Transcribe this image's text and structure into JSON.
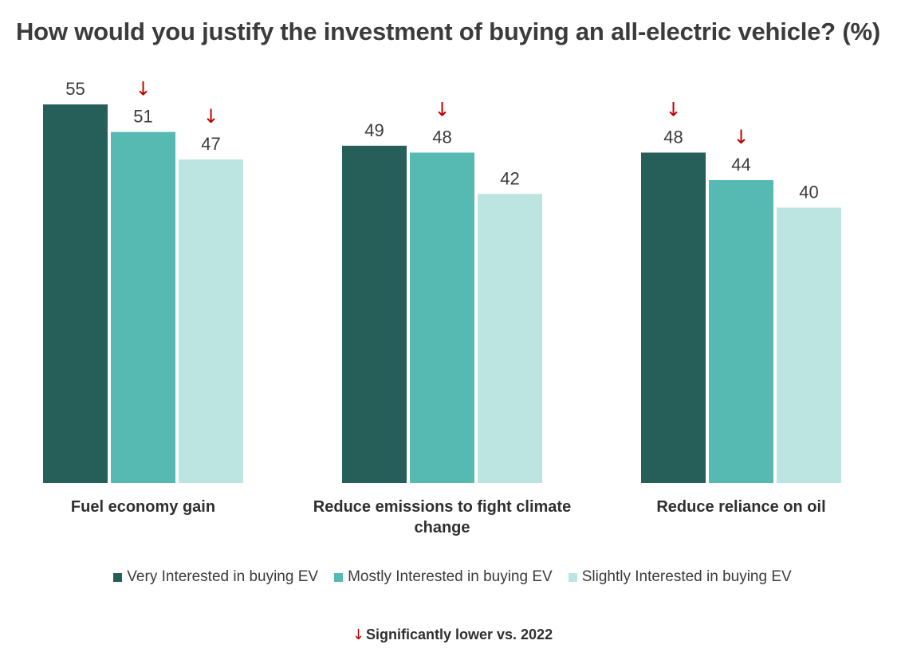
{
  "chart_data": {
    "type": "bar",
    "title": "How would you justify the investment of buying an all-electric vehicle? (%)",
    "categories": [
      "Fuel economy gain",
      "Reduce emissions to fight climate change",
      "Reduce reliance on oil"
    ],
    "category_label_lines": [
      [
        "Fuel economy gain"
      ],
      [
        "Reduce emissions to fight climate",
        "change"
      ],
      [
        "Reduce reliance on oil"
      ]
    ],
    "series": [
      {
        "name": "Very Interested in buying EV",
        "color": "#265e59",
        "values": [
          55,
          49,
          48
        ],
        "significantly_lower": [
          false,
          false,
          true
        ]
      },
      {
        "name": "Mostly Interested in buying EV",
        "color": "#56b9b2",
        "values": [
          51,
          48,
          44
        ],
        "significantly_lower": [
          true,
          true,
          true
        ]
      },
      {
        "name": "Slightly Interested in buying EV",
        "color": "#bce5e1",
        "values": [
          47,
          42,
          40
        ],
        "significantly_lower": [
          true,
          false,
          false
        ]
      }
    ],
    "ylim": [
      0,
      55
    ],
    "grid": false,
    "legend_position": "bottom",
    "xlabel": "",
    "ylabel": ""
  },
  "significance_marker": "↓",
  "footnote": {
    "arrow": "↓",
    "text": "Significantly lower vs. 2022"
  },
  "colors": {
    "arrow": "#c00000",
    "text": "#3b3b3b"
  }
}
